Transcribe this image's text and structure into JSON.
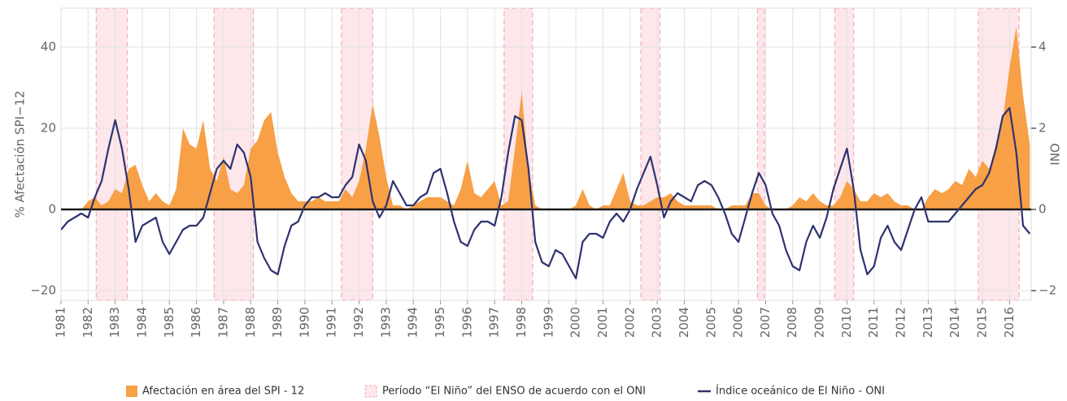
{
  "chart_data": {
    "type": "line",
    "ylabel": "% Afectación SPI−12",
    "y2label": "INO",
    "xlim": [
      1981,
      2016.8
    ],
    "xticks": [
      1981,
      1982,
      1983,
      1984,
      1985,
      1986,
      1987,
      1988,
      1989,
      1990,
      1991,
      1992,
      1993,
      1994,
      1995,
      1996,
      1997,
      1998,
      1999,
      2000,
      2001,
      2002,
      2003,
      2004,
      2005,
      2006,
      2007,
      2008,
      2009,
      2010,
      2011,
      2012,
      2013,
      2014,
      2015,
      2016
    ],
    "ylim": [
      -22.4,
      49.6
    ],
    "yticks": [
      {
        "value": -20,
        "label": "−20"
      },
      0,
      20,
      40
    ],
    "y2lim": [
      -2.24,
      4.96
    ],
    "y2ticks": [
      {
        "value": -2,
        "label": "−2"
      },
      0,
      2,
      4
    ],
    "grid": true,
    "x": [
      1981,
      1981.25,
      1981.5,
      1981.75,
      1982,
      1982.25,
      1982.5,
      1982.75,
      1983,
      1983.25,
      1983.5,
      1983.75,
      1984,
      1984.25,
      1984.5,
      1984.75,
      1985,
      1985.25,
      1985.5,
      1985.75,
      1986,
      1986.25,
      1986.5,
      1986.75,
      1987,
      1987.25,
      1987.5,
      1987.75,
      1988,
      1988.25,
      1988.5,
      1988.75,
      1989,
      1989.25,
      1989.5,
      1989.75,
      1990,
      1990.25,
      1990.5,
      1990.75,
      1991,
      1991.25,
      1991.5,
      1991.75,
      1992,
      1992.25,
      1992.5,
      1992.75,
      1993,
      1993.25,
      1993.5,
      1993.75,
      1994,
      1994.25,
      1994.5,
      1994.75,
      1995,
      1995.25,
      1995.5,
      1995.75,
      1996,
      1996.25,
      1996.5,
      1996.75,
      1997,
      1997.25,
      1997.5,
      1997.75,
      1998,
      1998.25,
      1998.5,
      1998.75,
      1999,
      1999.25,
      1999.5,
      1999.75,
      2000,
      2000.25,
      2000.5,
      2000.75,
      2001,
      2001.25,
      2001.5,
      2001.75,
      2002,
      2002.25,
      2002.5,
      2002.75,
      2003,
      2003.25,
      2003.5,
      2003.75,
      2004,
      2004.25,
      2004.5,
      2004.75,
      2005,
      2005.25,
      2005.5,
      2005.75,
      2006,
      2006.25,
      2006.5,
      2006.75,
      2007,
      2007.25,
      2007.5,
      2007.75,
      2008,
      2008.25,
      2008.5,
      2008.75,
      2009,
      2009.25,
      2009.5,
      2009.75,
      2010,
      2010.25,
      2010.5,
      2010.75,
      2011,
      2011.25,
      2011.5,
      2011.75,
      2012,
      2012.25,
      2012.5,
      2012.75,
      2013,
      2013.25,
      2013.5,
      2013.75,
      2014,
      2014.25,
      2014.5,
      2014.75,
      2015,
      2015.25,
      2015.5,
      2015.75,
      2016,
      2016.25,
      2016.5,
      2016.75
    ],
    "series": [
      {
        "name": "Afectación en área del SPI - 12",
        "type": "area",
        "color": "#f7a046",
        "values": [
          0,
          0,
          0,
          0,
          2,
          3,
          1,
          2,
          5,
          4,
          10,
          11,
          6,
          2,
          4,
          2,
          1,
          5,
          20,
          16,
          15,
          22,
          10,
          7,
          13,
          5,
          4,
          6,
          15,
          17,
          22,
          24,
          14,
          8,
          4,
          2,
          2,
          2,
          3,
          2,
          2,
          2,
          5,
          3,
          7,
          15,
          26,
          18,
          8,
          1,
          1,
          0,
          1,
          2,
          3,
          3,
          3,
          2,
          1,
          5,
          12,
          4,
          3,
          5,
          7,
          1,
          2,
          15,
          29,
          10,
          1,
          0,
          0,
          0,
          0,
          0,
          1,
          5,
          1,
          0,
          1,
          1,
          5,
          9,
          2,
          1,
          1,
          2,
          3,
          3,
          4,
          2,
          1,
          1,
          1,
          1,
          1,
          0,
          0,
          1,
          1,
          1,
          4,
          4,
          1,
          0,
          0,
          0,
          1,
          3,
          2,
          4,
          2,
          1,
          1,
          3,
          7,
          5,
          2,
          2,
          4,
          3,
          4,
          2,
          1,
          1,
          0,
          0,
          3,
          5,
          4,
          5,
          7,
          6,
          10,
          8,
          12,
          10,
          16,
          22,
          35,
          45,
          28,
          16
        ]
      },
      {
        "name": "Índice oceánico de El Niño  - ONI",
        "type": "line",
        "axis": "y2",
        "color": "#2e3270",
        "values": [
          -0.5,
          -0.3,
          -0.2,
          -0.1,
          -0.2,
          0.3,
          0.7,
          1.5,
          2.2,
          1.5,
          0.5,
          -0.8,
          -0.4,
          -0.3,
          -0.2,
          -0.8,
          -1.1,
          -0.8,
          -0.5,
          -0.4,
          -0.4,
          -0.2,
          0.4,
          1.0,
          1.2,
          1.0,
          1.6,
          1.4,
          0.8,
          -0.8,
          -1.2,
          -1.5,
          -1.6,
          -0.9,
          -0.4,
          -0.3,
          0.1,
          0.3,
          0.3,
          0.4,
          0.3,
          0.3,
          0.6,
          0.8,
          1.6,
          1.2,
          0.2,
          -0.2,
          0.1,
          0.7,
          0.4,
          0.1,
          0.1,
          0.3,
          0.4,
          0.9,
          1.0,
          0.4,
          -0.3,
          -0.8,
          -0.9,
          -0.5,
          -0.3,
          -0.3,
          -0.4,
          0.3,
          1.4,
          2.3,
          2.2,
          1.0,
          -0.8,
          -1.3,
          -1.4,
          -1.0,
          -1.1,
          -1.4,
          -1.7,
          -0.8,
          -0.6,
          -0.6,
          -0.7,
          -0.3,
          -0.1,
          -0.3,
          0.0,
          0.5,
          0.9,
          1.3,
          0.6,
          -0.2,
          0.2,
          0.4,
          0.3,
          0.2,
          0.6,
          0.7,
          0.6,
          0.3,
          -0.1,
          -0.6,
          -0.8,
          -0.2,
          0.4,
          0.9,
          0.6,
          -0.1,
          -0.4,
          -1.0,
          -1.4,
          -1.5,
          -0.8,
          -0.4,
          -0.7,
          -0.2,
          0.5,
          1.0,
          1.5,
          0.5,
          -1.0,
          -1.6,
          -1.4,
          -0.7,
          -0.4,
          -0.8,
          -1.0,
          -0.5,
          0.0,
          0.3,
          -0.3,
          -0.3,
          -0.3,
          -0.3,
          -0.1,
          0.1,
          0.3,
          0.5,
          0.6,
          0.9,
          1.5,
          2.3,
          2.5,
          1.4,
          -0.4,
          -0.6
        ]
      }
    ],
    "periods": {
      "name": "Período “El Niño” del ENSO de acuerdo con el ONI",
      "color": "#fde7ea",
      "edge": "#f3a9b9",
      "ranges": [
        [
          1982.3,
          1983.45
        ],
        [
          1986.65,
          1988.1
        ],
        [
          1991.35,
          1992.5
        ],
        [
          1997.35,
          1998.4
        ],
        [
          2002.4,
          2003.1
        ],
        [
          2006.7,
          2006.95
        ],
        [
          2009.55,
          2010.25
        ],
        [
          2014.85,
          2016.35
        ]
      ]
    }
  }
}
